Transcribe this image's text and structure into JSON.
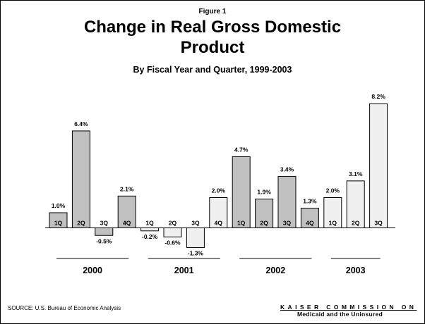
{
  "figure_label": "Figure 1",
  "title_line1": "Change in Real Gross Domestic",
  "title_line2": "Product",
  "subtitle": "By Fiscal Year and Quarter, 1999-2003",
  "source": "SOURCE: U.S. Bureau of Economic Analysis",
  "logo": {
    "line1": "KAISER COMMISSION ON",
    "line2": "Medicaid and the Uninsured"
  },
  "colors": {
    "bar_dark": "#c0c0c0",
    "bar_light": "#f0f0f0",
    "outline": "#000000"
  },
  "chart_data": {
    "type": "bar",
    "unit": "%",
    "ylim": [
      -1.3,
      8.2
    ],
    "grid": false,
    "legend": "none",
    "groups": [
      {
        "label": "2000",
        "bars": [
          {
            "quarter": "1Q",
            "value": 1.0,
            "label": "1.0%",
            "shade": "dark"
          },
          {
            "quarter": "2Q",
            "value": 6.4,
            "label": "6.4%",
            "shade": "dark"
          },
          {
            "quarter": "3Q",
            "value": -0.5,
            "label": "-0.5%",
            "shade": "dark"
          },
          {
            "quarter": "4Q",
            "value": 2.1,
            "label": "2.1%",
            "shade": "dark"
          }
        ]
      },
      {
        "label": "2001",
        "bars": [
          {
            "quarter": "1Q",
            "value": -0.2,
            "label": "-0.2%",
            "shade": "light"
          },
          {
            "quarter": "2Q",
            "value": -0.6,
            "label": "-0.6%",
            "shade": "light"
          },
          {
            "quarter": "3Q",
            "value": -1.3,
            "label": "-1.3%",
            "shade": "light"
          },
          {
            "quarter": "4Q",
            "value": 2.0,
            "label": "2.0%",
            "shade": "light"
          }
        ]
      },
      {
        "label": "2002",
        "bars": [
          {
            "quarter": "1Q",
            "value": 4.7,
            "label": "4.7%",
            "shade": "dark"
          },
          {
            "quarter": "2Q",
            "value": 1.9,
            "label": "1.9%",
            "shade": "dark"
          },
          {
            "quarter": "3Q",
            "value": 3.4,
            "label": "3.4%",
            "shade": "dark"
          },
          {
            "quarter": "4Q",
            "value": 1.3,
            "label": "1.3%",
            "shade": "dark"
          }
        ]
      },
      {
        "label": "2003",
        "bars": [
          {
            "quarter": "1Q",
            "value": 2.0,
            "label": "2.0%",
            "shade": "light"
          },
          {
            "quarter": "2Q",
            "value": 3.1,
            "label": "3.1%",
            "shade": "light"
          },
          {
            "quarter": "3Q",
            "value": 8.2,
            "label": "8.2%",
            "shade": "light"
          }
        ]
      }
    ]
  }
}
